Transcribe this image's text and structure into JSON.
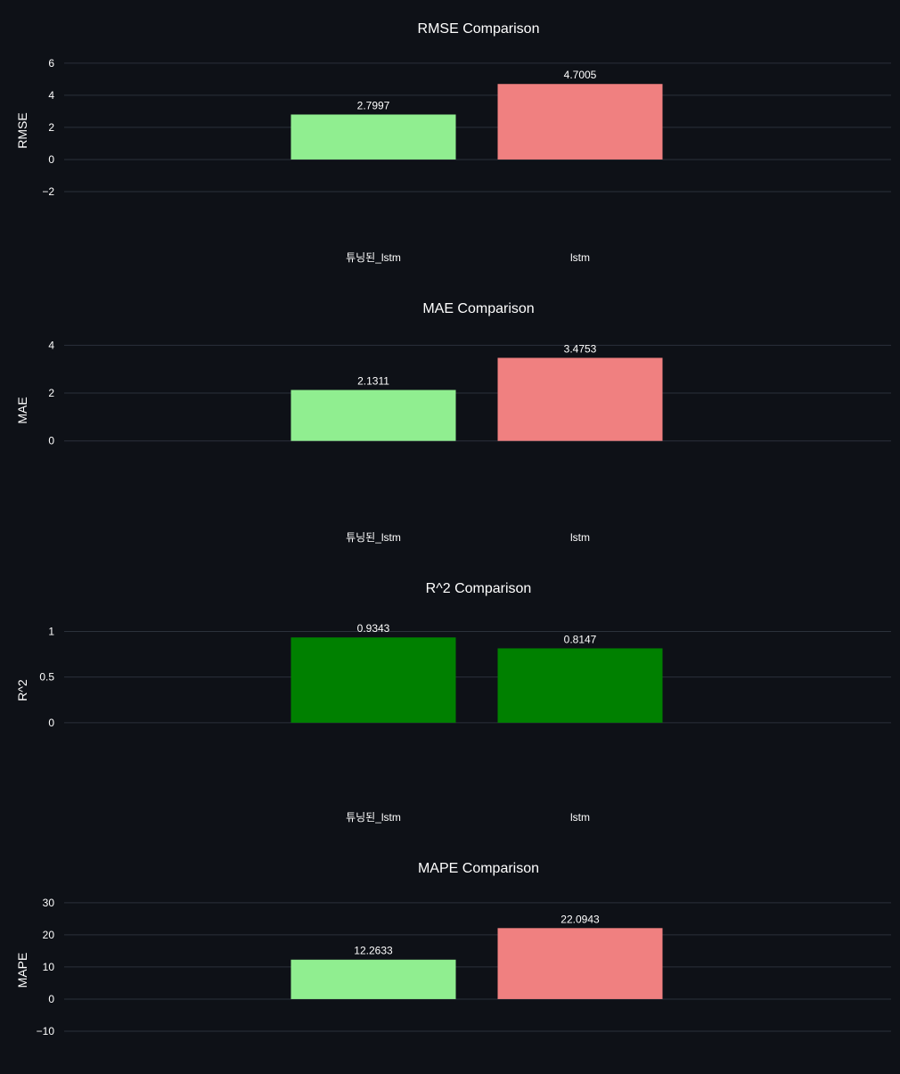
{
  "theme": {
    "background": "#0e1117",
    "grid": "#2b313b",
    "text": "#ffffff"
  },
  "chart_data": [
    {
      "type": "bar",
      "title": "RMSE Comparison",
      "ylabel": "RMSE",
      "categories": [
        "튜닝된_lstm",
        "lstm"
      ],
      "values": [
        2.7997,
        4.7005
      ],
      "labels": [
        "2.7997",
        "4.7005"
      ],
      "colors": [
        "#90ee90",
        "#f08080"
      ],
      "ylim": [
        -3,
        6.6
      ],
      "yticks": [
        -2,
        0,
        2,
        4,
        6
      ],
      "ytick_labels": [
        "−2",
        "0",
        "2",
        "4",
        "6"
      ],
      "grid": true
    },
    {
      "type": "bar",
      "title": "MAE Comparison",
      "ylabel": "MAE",
      "categories": [
        "튜닝된_lstm",
        "lstm"
      ],
      "values": [
        2.1311,
        3.4753
      ],
      "labels": [
        "2.1311",
        "3.4753"
      ],
      "colors": [
        "#90ee90",
        "#f08080"
      ],
      "ylim": [
        -1.95,
        4.5
      ],
      "yticks": [
        0,
        2,
        4
      ],
      "ytick_labels": [
        "0",
        "2",
        "4"
      ],
      "grid": true
    },
    {
      "type": "bar",
      "title": "R^2 Comparison",
      "ylabel": "R^2",
      "categories": [
        "튜닝된_lstm",
        "lstm"
      ],
      "values": [
        0.9343,
        0.8147
      ],
      "labels": [
        "0.9343",
        "0.8147"
      ],
      "colors": [
        "#008000",
        "#008000"
      ],
      "ylim": [
        -0.49,
        1.2
      ],
      "yticks": [
        0,
        0.5,
        1
      ],
      "ytick_labels": [
        "0",
        "0.5",
        "1"
      ],
      "grid": true
    },
    {
      "type": "bar",
      "title": "MAPE Comparison",
      "ylabel": "MAPE",
      "categories": [
        "튜닝된_lstm",
        "lstm"
      ],
      "values": [
        12.2633,
        22.0943
      ],
      "labels": [
        "12.2633",
        "22.0943"
      ],
      "colors": [
        "#90ee90",
        "#f08080"
      ],
      "ylim": [
        -15,
        33
      ],
      "yticks": [
        -10,
        0,
        10,
        20,
        30
      ],
      "ytick_labels": [
        "−10",
        "0",
        "10",
        "20",
        "30"
      ],
      "grid": true
    }
  ]
}
